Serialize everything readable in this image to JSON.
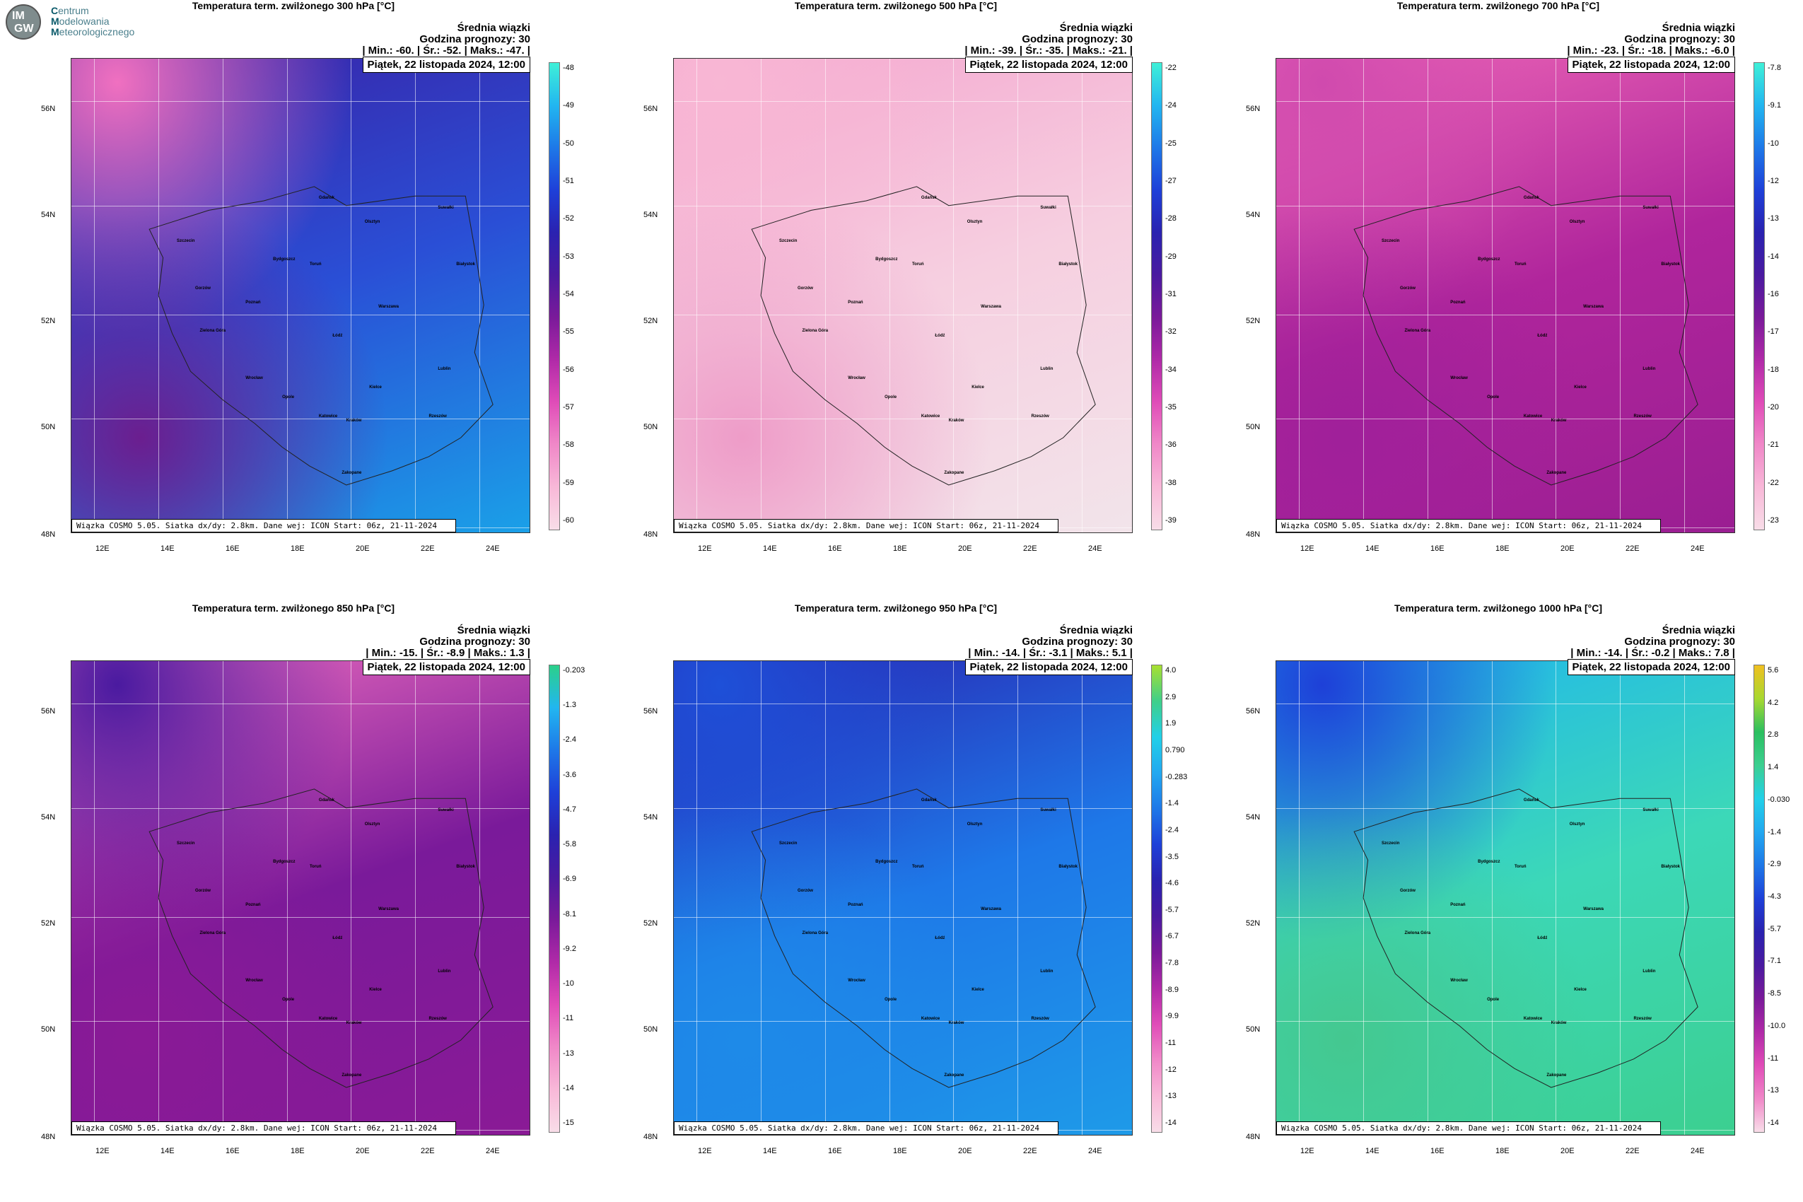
{
  "logo": {
    "initials_top": "IM",
    "initials_bottom": "GW",
    "line1_initial": "C",
    "line1_rest": "entrum",
    "line2_initial": "M",
    "line2_rest": "odelowania",
    "line3_initial": "M",
    "line3_rest": "eteorologicznego"
  },
  "common": {
    "avg_label": "Średnia wiązki",
    "forecast_hour": "Godzina prognozy: 30",
    "date": "Piątek, 22 listopada 2024, 12:00",
    "footer": "Wiązka COSMO 5.05. Siatka dx/dy: 2.8km. Dane wej: ICON Start: 06z, 21-11-2024",
    "lat_labels": [
      "56N",
      "54N",
      "52N",
      "50N",
      "48N"
    ],
    "lon_labels": [
      "12E",
      "14E",
      "16E",
      "18E",
      "20E",
      "22E",
      "24E"
    ]
  },
  "panels": [
    {
      "title": "Temperatura term. zwilżonego 300 hPa [°C]",
      "stats": "| Min.:    -60. | Śr.:    -52. | Maks.:    -47. |",
      "ticks": [
        "-48",
        "-49",
        "-50",
        "-51",
        "-52",
        "-53",
        "-54",
        "-55",
        "-56",
        "-57",
        "-58",
        "-59",
        "-60"
      ],
      "colors": {
        "top": "#3a1fa3",
        "mid": "#2a4fd6",
        "low": "#1aa0e8",
        "sw": "#6b1e8f",
        "nw": "#f070c0"
      },
      "cbar": [
        "#3ff0d8",
        "#22b6f0",
        "#1e78e8",
        "#1e40d8",
        "#2a22b0",
        "#4a1aa0",
        "#7a1a9a",
        "#b02aa8",
        "#e04cb8",
        "#f088c8",
        "#f8b8d8",
        "#f8dde8"
      ]
    },
    {
      "title": "Temperatura term. zwilżonego 500 hPa [°C]",
      "stats": "| Min.:    -39. | Śr.:    -35. | Maks.:    -21. |",
      "ticks": [
        "-22",
        "-24",
        "-25",
        "-27",
        "-28",
        "-29",
        "-31",
        "-32",
        "-34",
        "-35",
        "-36",
        "-38",
        "-39"
      ],
      "colors": {
        "top": "#f4a6cf",
        "mid": "#f6cfe0",
        "low": "#f2e4ea",
        "sw": "#ee9cc8",
        "nw": "#f8b7d4"
      },
      "cbar": [
        "#3ff0d8",
        "#22b6f0",
        "#1e78e8",
        "#1e40d8",
        "#2a22b0",
        "#4a1aa0",
        "#7a1a9a",
        "#b02aa8",
        "#e04cb8",
        "#f088c8",
        "#f8b8d8",
        "#f8dde8"
      ]
    },
    {
      "title": "Temperatura term. zwilżonego 700 hPa [°C]",
      "stats": "| Min.:    -23. | Śr.:    -18. | Maks.:    -6.0 |",
      "ticks": [
        "-7.8",
        "-9.1",
        "-10",
        "-12",
        "-13",
        "-14",
        "-16",
        "-17",
        "-18",
        "-20",
        "-21",
        "-22",
        "-23"
      ],
      "colors": {
        "top": "#f06ab8",
        "mid": "#b0259c",
        "low": "#9a1e92",
        "sw": "#a0209a",
        "nw": "#d04aae"
      },
      "cbar": [
        "#3ff0d8",
        "#22b6f0",
        "#1e78e8",
        "#1e40d8",
        "#2a22b0",
        "#4a1aa0",
        "#7a1a9a",
        "#b02aa8",
        "#e04cb8",
        "#f088c8",
        "#f8b8d8",
        "#f8dde8"
      ]
    },
    {
      "title": "Temperatura term. zwilżonego 850 hPa [°C]",
      "stats": "| Min.:    -15. | Śr.:    -8.9 | Maks.:    1.3 |",
      "ticks": [
        "-0.203",
        "-1.3",
        "-2.4",
        "-3.6",
        "-4.7",
        "-5.8",
        "-6.9",
        "-8.1",
        "-9.2",
        "-10",
        "-11",
        "-13",
        "-14",
        "-15"
      ],
      "colors": {
        "top": "#f070c0",
        "mid": "#7a1a9a",
        "low": "#8a1a96",
        "sw": "#8a1a96",
        "nw": "#4a1aa0"
      },
      "cbar": [
        "#2bd08a",
        "#22b6f0",
        "#1e78e8",
        "#1e40d8",
        "#2a22b0",
        "#4a1aa0",
        "#7a1a9a",
        "#b02aa8",
        "#e04cb8",
        "#f088c8",
        "#f8b8d8",
        "#f8dde8"
      ]
    },
    {
      "title": "Temperatura term. zwilżonego 950 hPa [°C]",
      "stats": "| Min.:    -14. | Śr.:    -3.1 | Maks.:    5.1 |",
      "ticks": [
        "4.0",
        "2.9",
        "1.9",
        "0.790",
        "-0.283",
        "-1.4",
        "-2.4",
        "-3.5",
        "-4.6",
        "-5.7",
        "-6.7",
        "-7.8",
        "-8.9",
        "-9.9",
        "-11",
        "-12",
        "-13",
        "-14"
      ],
      "colors": {
        "top": "#2a22b0",
        "mid": "#1e78e8",
        "low": "#1e9ae8",
        "sw": "#1e8ae8",
        "nw": "#1e50d8"
      },
      "cbar": [
        "#a8e030",
        "#3fcf8a",
        "#22d0e8",
        "#22a8f0",
        "#1e78e8",
        "#1e40d8",
        "#2a22b0",
        "#4a1aa0",
        "#7a1a9a",
        "#b02aa8",
        "#e04cb8",
        "#f088c8",
        "#f8b8d8",
        "#f8dde8"
      ]
    },
    {
      "title": "Temperatura term. zwilżonego 1000 hPa [°C]",
      "stats": "| Min.:    -14. | Śr.:    -0.2 | Maks.:    7.8 |",
      "ticks": [
        "5.6",
        "4.2",
        "2.8",
        "1.4",
        "-0.030",
        "-1.4",
        "-2.9",
        "-4.3",
        "-5.7",
        "-7.1",
        "-8.5",
        "-10.0",
        "-11",
        "-13",
        "-14"
      ],
      "colors": {
        "top": "#1eb4f0",
        "mid": "#3cd8b8",
        "low": "#3ccf90",
        "sw": "#44c890",
        "nw": "#1e40d8"
      },
      "cbar": [
        "#f0c020",
        "#a8d830",
        "#2bbf60",
        "#3ccf90",
        "#22d0e8",
        "#22a8f0",
        "#1e78e8",
        "#1e40d8",
        "#2a22b0",
        "#4a1aa0",
        "#7a1a9a",
        "#b02aa8",
        "#e04cb8",
        "#f088c8",
        "#f8dde8"
      ]
    }
  ],
  "cities": [
    "Gdańsk",
    "Olsztyn",
    "Suwałki",
    "Szczecin",
    "Bydgoszcz",
    "Toruń",
    "Białystok",
    "Gorzów",
    "Poznań",
    "Warszawa",
    "Zielona Góra",
    "Łódź",
    "Lublin",
    "Wrocław",
    "Kielce",
    "Opole",
    "Katowice",
    "Kraków",
    "Rzeszów",
    "Zakopane"
  ]
}
